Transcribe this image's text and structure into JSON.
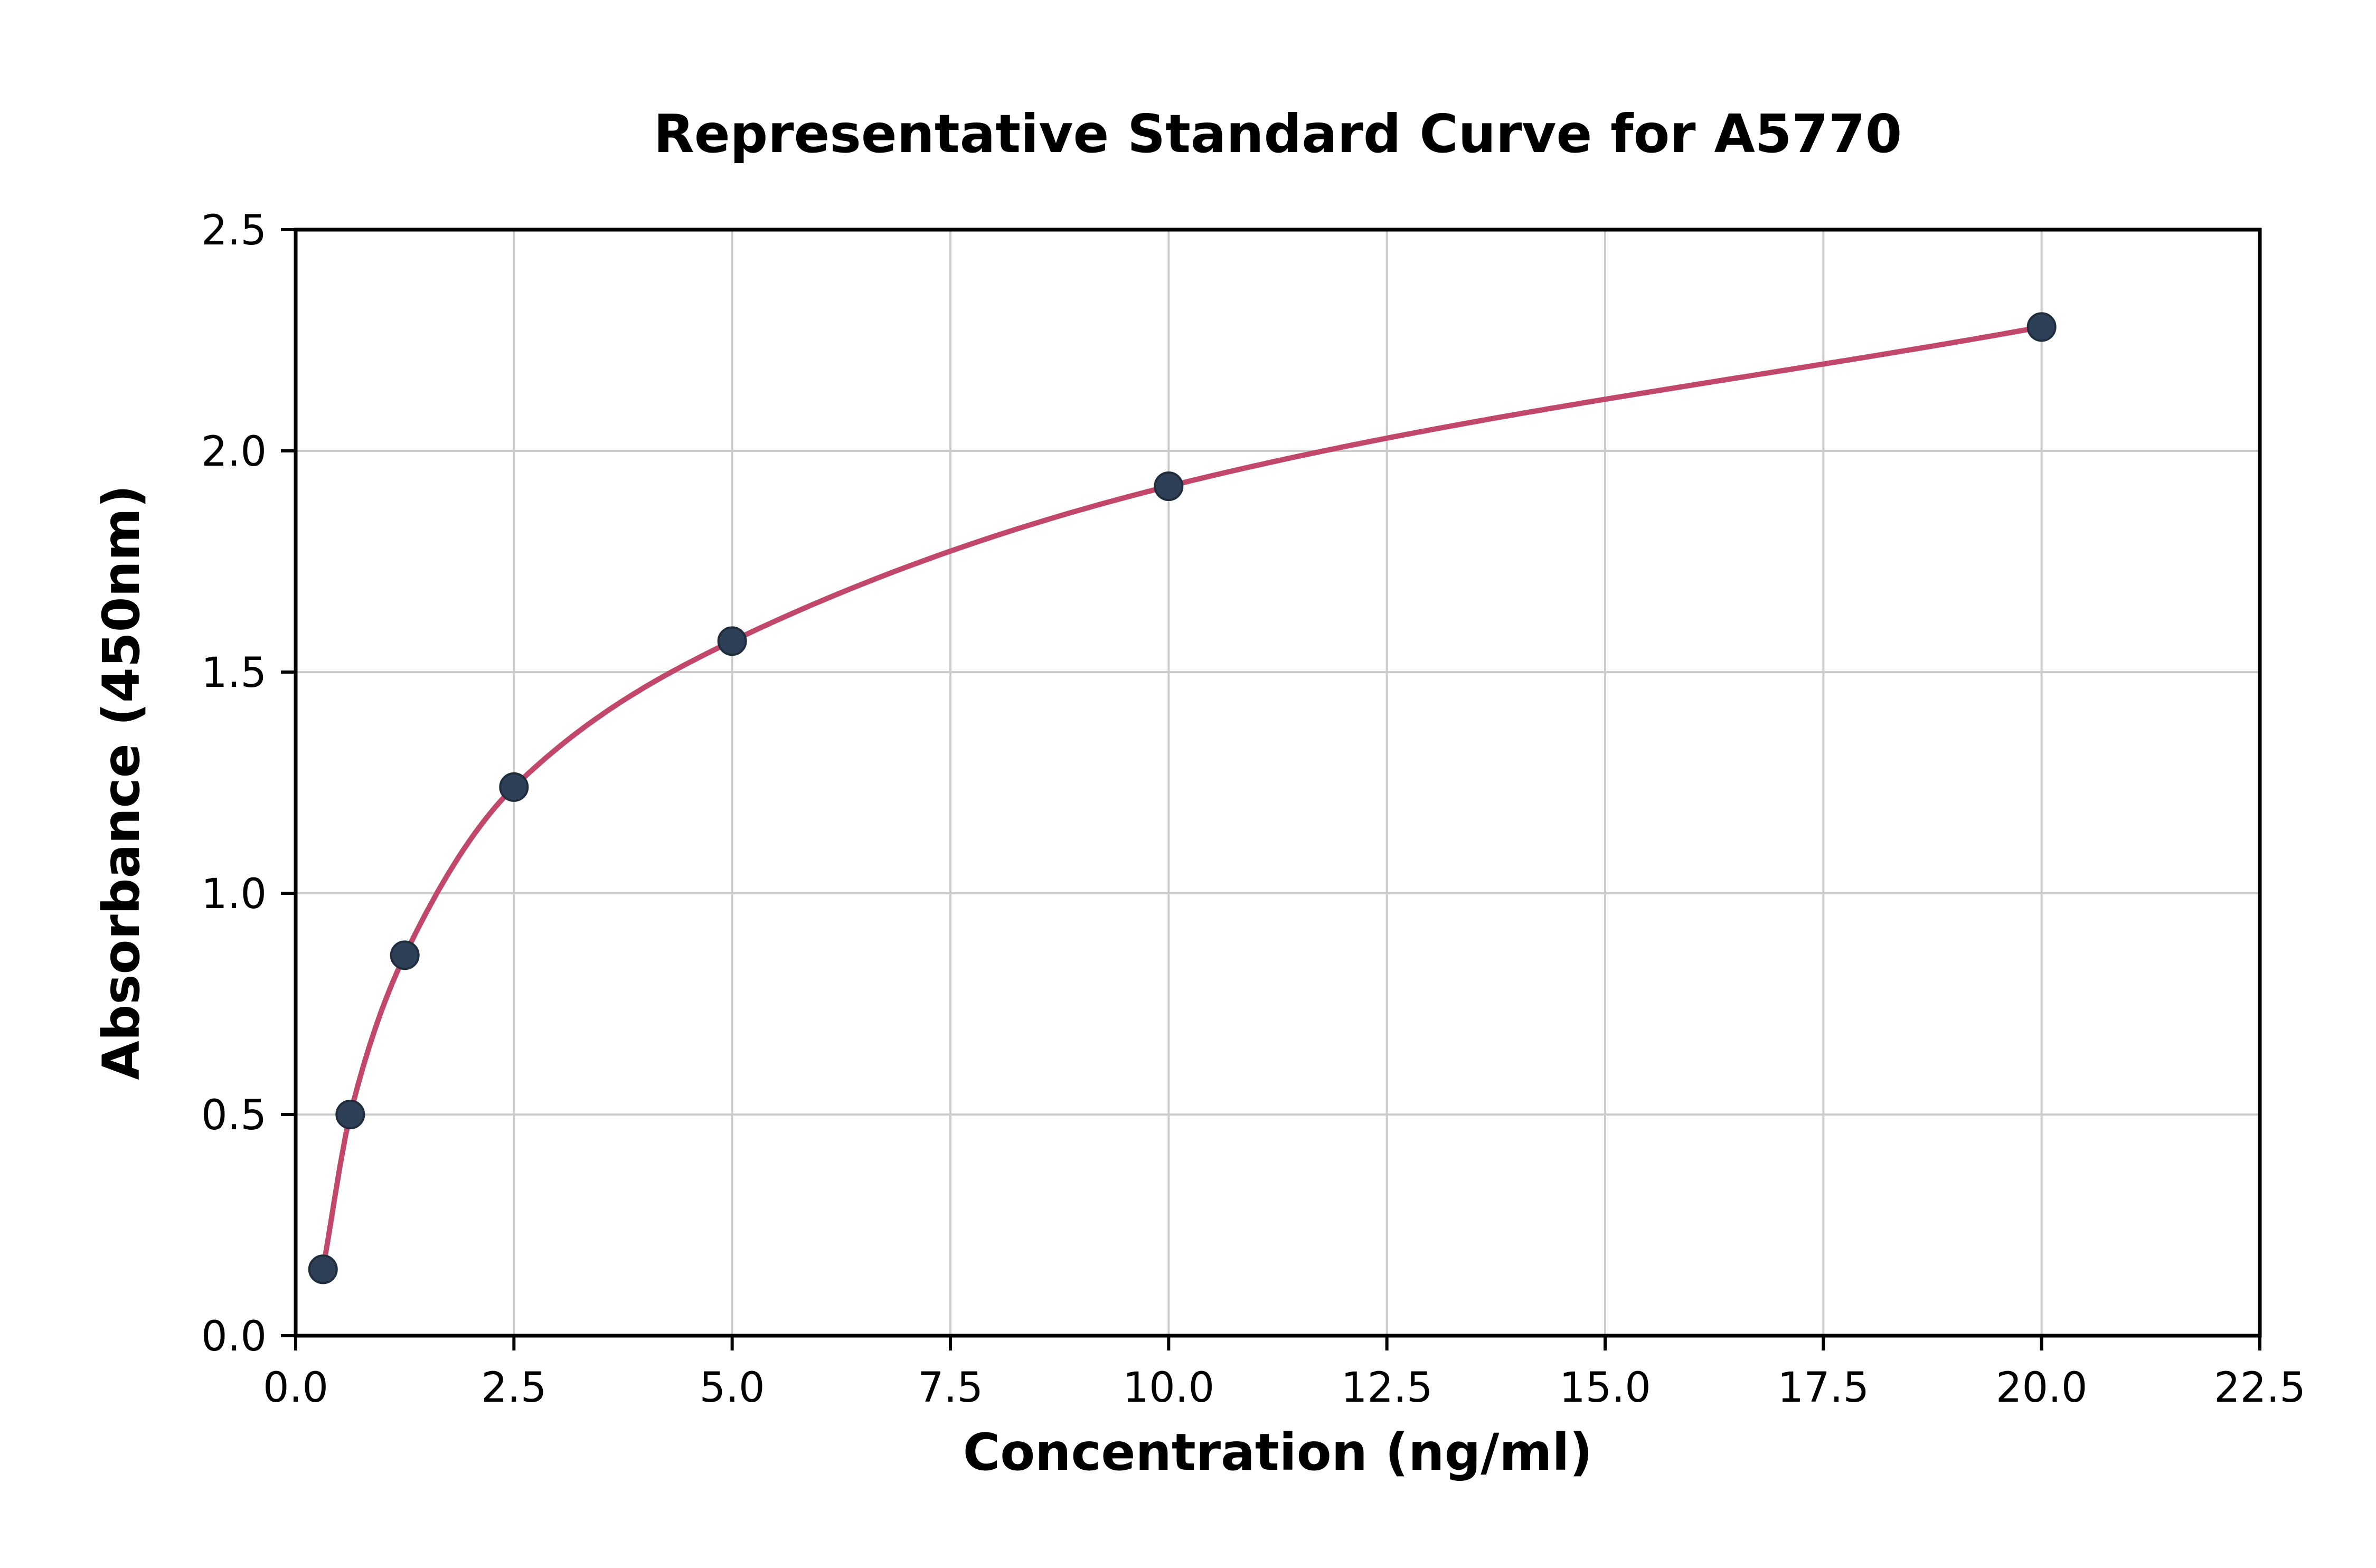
{
  "chart_data": {
    "type": "scatter",
    "title": "Representative Standard Curve for A5770",
    "xlabel": "Concentration (ng/ml)",
    "ylabel": "Absorbance (450nm)",
    "xlim": [
      0,
      22.5
    ],
    "ylim": [
      0,
      2.5
    ],
    "xticks": [
      0.0,
      2.5,
      5.0,
      7.5,
      10.0,
      12.5,
      15.0,
      17.5,
      20.0,
      22.5
    ],
    "yticks": [
      0.0,
      0.5,
      1.0,
      1.5,
      2.0,
      2.5
    ],
    "grid": true,
    "legend": "none",
    "series": [
      {
        "name": "standard-points",
        "type": "scatter",
        "x": [
          0.313,
          0.625,
          1.25,
          2.5,
          5.0,
          10.0,
          20.0
        ],
        "y": [
          0.15,
          0.5,
          0.86,
          1.24,
          1.57,
          1.92,
          2.28
        ]
      },
      {
        "name": "fitted-curve",
        "type": "line",
        "x_range": [
          0.313,
          20.0
        ]
      }
    ],
    "style": {
      "curve_color": "#c2486b",
      "marker_color": "#2e4057",
      "marker_edge_color": "#1f2d3d",
      "grid_color": "#cccccc",
      "spine_color": "#000000",
      "background": "#ffffff"
    }
  }
}
